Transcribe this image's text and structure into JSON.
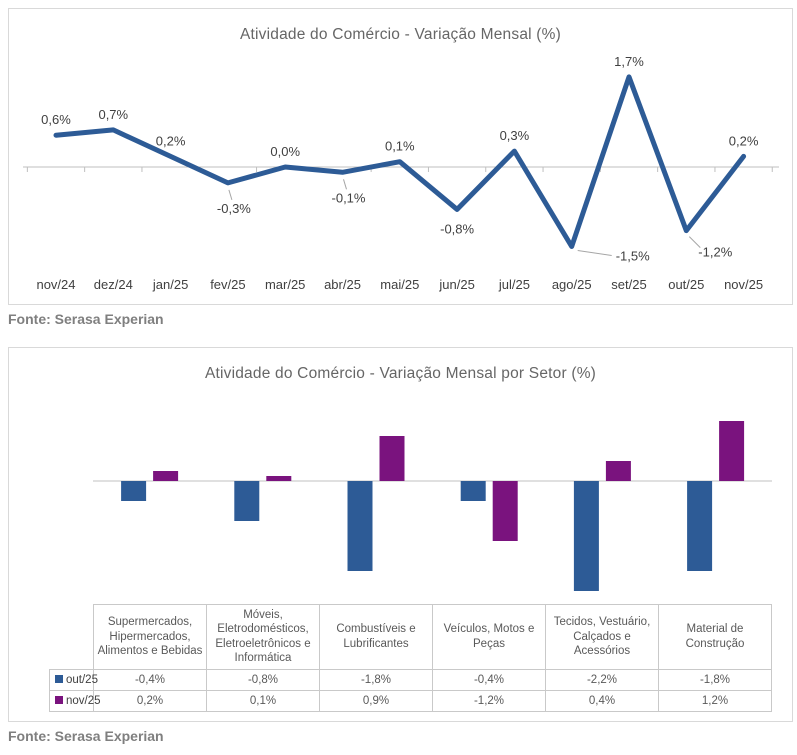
{
  "panels": [
    {
      "source": "Fonte: Serasa Experian"
    },
    {
      "source": "Fonte: Serasa Experian"
    }
  ],
  "colors": {
    "line_blue": "#2d5b96",
    "bar_blue": "#2d5b96",
    "bar_purple": "#7a137e",
    "axis_gray": "#bfbfbf",
    "zero_line_gray": "#e0e0e0"
  },
  "chart_data": [
    {
      "type": "line",
      "title": "Atividade do Comércio - Variação Mensal (%)",
      "categories": [
        "nov/24",
        "dez/24",
        "jan/25",
        "fev/25",
        "mar/25",
        "abr/25",
        "mai/25",
        "jun/25",
        "jul/25",
        "ago/25",
        "set/25",
        "out/25",
        "nov/25"
      ],
      "values": [
        0.6,
        0.7,
        0.2,
        -0.3,
        0.0,
        -0.1,
        0.1,
        -0.8,
        0.3,
        -1.5,
        1.7,
        -1.2,
        0.2
      ],
      "labels": [
        "0,6%",
        "0,7%",
        "0,2%",
        "-0,3%",
        "0,0%",
        "-0,1%",
        "0,1%",
        "-0,8%",
        "0,3%",
        "-1,5%",
        "1,7%",
        "-1,2%",
        "0,2%"
      ],
      "label_positions": [
        "above",
        "above",
        "above",
        "below-leader",
        "above",
        "below-leader",
        "above",
        "below",
        "above",
        "right-leader",
        "above",
        "belowright-leader",
        "above"
      ],
      "line_color": "#2d5b96",
      "ylim": [
        -2.0,
        2.2
      ],
      "grid": false,
      "legend_position": "none"
    },
    {
      "type": "bar",
      "title": "Atividade do Comércio - Variação Mensal por Setor (%)",
      "categories": [
        "Supermercados, Hipermercados, Alimentos e Bebidas",
        "Móveis, Eletrodomésticos, Eletroeletrônicos e Informática",
        "Combustíveis e Lubrificantes",
        "Veículos, Motos e Peças",
        "Tecidos, Vestuário, Calçados e Acessórios",
        "Material de Construção"
      ],
      "series": [
        {
          "name": "out/25",
          "color": "#2d5b96",
          "values": [
            -0.4,
            -0.8,
            -1.8,
            -0.4,
            -2.2,
            -1.8
          ],
          "labels": [
            "-0,4%",
            "-0,8%",
            "-1,8%",
            "-0,4%",
            "-2,2%",
            "-1,8%"
          ]
        },
        {
          "name": "nov/25",
          "color": "#7a137e",
          "values": [
            0.2,
            0.1,
            0.9,
            -1.2,
            0.4,
            1.2
          ],
          "labels": [
            "0,2%",
            "0,1%",
            "0,9%",
            "-1,2%",
            "0,4%",
            "1,2%"
          ]
        }
      ],
      "ylim": [
        -2.4,
        1.4
      ],
      "grid": false,
      "legend_position": "table-left"
    }
  ]
}
